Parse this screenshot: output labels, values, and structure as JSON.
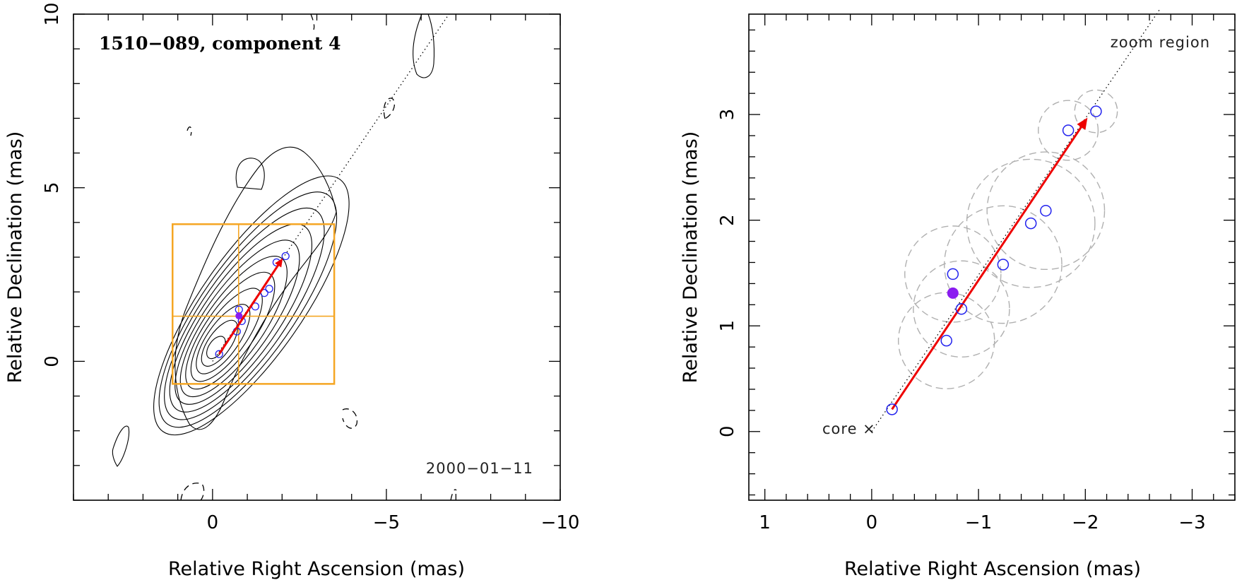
{
  "chart_data": [
    {
      "type": "scatter",
      "panel": "left",
      "title": "1510−089, component 4",
      "date_label": "2000−01−11",
      "xlabel": "Relative Right Ascension (mas)",
      "ylabel": "Relative Declination (mas)",
      "xlim": [
        4,
        -10
      ],
      "ylim": [
        -4,
        10
      ],
      "x_ticks": [
        0,
        -5,
        -10
      ],
      "x_tick_labels": [
        "0",
        "−5",
        "−10"
      ],
      "y_ticks": [
        0,
        5,
        10
      ],
      "y_tick_labels": [
        "0",
        "5",
        "10"
      ],
      "zoom_box": {
        "x_range": [
          1.15,
          -3.5
        ],
        "y_range": [
          -0.65,
          3.95
        ]
      },
      "crosshair": {
        "x": -0.75,
        "y": 1.3
      },
      "series": [
        {
          "name": "component positions",
          "x": [
            -0.19,
            -0.7,
            -0.84,
            -0.76,
            -1.23,
            -1.49,
            -1.63,
            -1.84,
            -2.1
          ],
          "y": [
            0.21,
            0.86,
            1.16,
            1.49,
            1.58,
            1.97,
            2.09,
            2.85,
            3.03
          ]
        },
        {
          "name": "reference epoch",
          "x": [
            -0.76
          ],
          "y": [
            1.31
          ]
        }
      ],
      "arrow": {
        "from": [
          -0.19,
          0.21
        ],
        "to": [
          -2.02,
          2.97
        ]
      },
      "trajectory_line": {
        "from": [
          0,
          0
        ],
        "to": [
          -6.8,
          10
        ]
      },
      "contour_levels": 11
    },
    {
      "type": "scatter",
      "panel": "right",
      "xlabel": "Relative Right Ascension (mas)",
      "ylabel": "Relative Declination (mas)",
      "xlim": [
        1.15,
        -3.4
      ],
      "ylim": [
        -0.65,
        3.95
      ],
      "x_ticks": [
        1,
        0,
        -1,
        -2,
        -3
      ],
      "x_tick_labels": [
        "1",
        "0",
        "−1",
        "−2",
        "−3"
      ],
      "y_ticks": [
        0,
        1,
        2,
        3
      ],
      "y_tick_labels": [
        "0",
        "1",
        "2",
        "3"
      ],
      "annotations": {
        "zoom": "zoom region",
        "core": "core ×"
      },
      "series": [
        {
          "name": "component positions",
          "x": [
            -0.19,
            -0.7,
            -0.84,
            -0.76,
            -1.23,
            -1.49,
            -1.63,
            -1.84,
            -2.1
          ],
          "y": [
            0.21,
            0.86,
            1.16,
            1.49,
            1.58,
            1.97,
            2.09,
            2.85,
            3.03
          ],
          "fwhm": [
            0.05,
            0.45,
            0.45,
            0.45,
            0.55,
            0.6,
            0.55,
            0.28,
            0.2
          ]
        },
        {
          "name": "reference epoch",
          "x": [
            -0.76
          ],
          "y": [
            1.31
          ]
        }
      ],
      "arrow": {
        "from": [
          -0.19,
          0.21
        ],
        "to": [
          -2.02,
          2.97
        ]
      },
      "trajectory_line": {
        "from": [
          0,
          0
        ],
        "to": [
          -2.7,
          4.0
        ]
      }
    }
  ],
  "colors": {
    "arrow": "#ee0000",
    "points": "#2222ee",
    "reference": "#8a1cf0",
    "box": "#f5a623",
    "fwhm": "#b0b0b0"
  }
}
